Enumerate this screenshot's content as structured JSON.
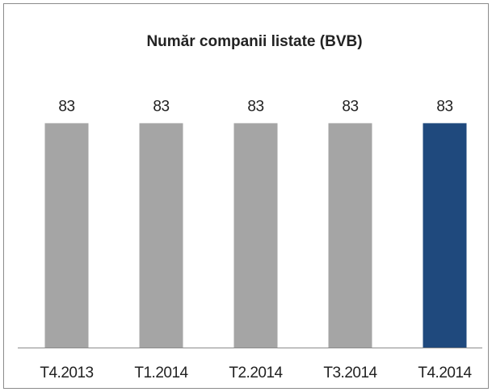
{
  "chart_data": {
    "type": "bar",
    "title": "Număr companii listate  (BVB)",
    "categories": [
      "T4.2013",
      "T1.2014",
      "T2.2014",
      "T3.2014",
      "T4.2014"
    ],
    "values": [
      83,
      83,
      83,
      83,
      83
    ],
    "colors": [
      "#a5a5a5",
      "#a5a5a5",
      "#a5a5a5",
      "#a5a5a5",
      "#1f497d"
    ],
    "ylim": [
      0,
      90
    ]
  }
}
